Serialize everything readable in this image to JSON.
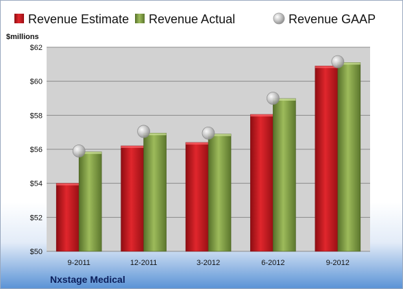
{
  "colors": {
    "estimate": "#c0161c",
    "actual": "#7a9a3a",
    "gaap": "#b8b8b8",
    "plot_bg": "#d2d2d2",
    "grid": "#8a8a8a"
  },
  "chart_data": {
    "type": "bar",
    "categories": [
      "9-2011",
      "12-2011",
      "3-2012",
      "6-2012",
      "9-2012"
    ],
    "series": [
      {
        "name": "Revenue Estimate",
        "kind": "bar",
        "values": [
          54.0,
          56.2,
          56.4,
          58.05,
          60.9
        ]
      },
      {
        "name": "Revenue Actual",
        "kind": "bar",
        "values": [
          55.85,
          56.95,
          56.9,
          58.98,
          61.1
        ]
      },
      {
        "name": "Revenue GAAP",
        "kind": "scatter",
        "values": [
          55.9,
          57.05,
          56.95,
          59.0,
          61.15
        ]
      }
    ],
    "ylabel": "$millions",
    "ylim": [
      50,
      62
    ],
    "yticks": [
      50,
      52,
      54,
      56,
      58,
      60,
      62
    ],
    "ytick_labels": [
      "$50",
      "$52",
      "$54",
      "$56",
      "$58",
      "$60",
      "$62"
    ],
    "grid": true,
    "legend_position": "top",
    "company": "Nxstage Medical"
  }
}
